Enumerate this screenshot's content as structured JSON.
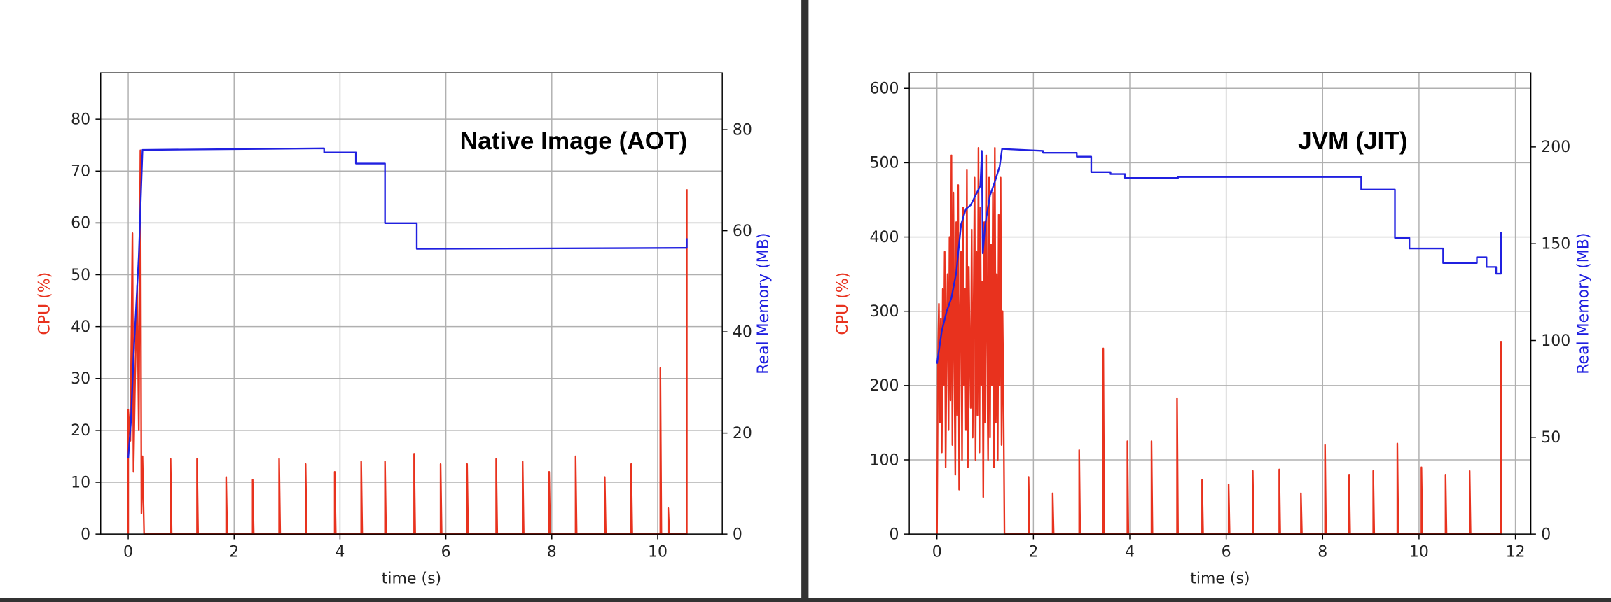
{
  "chart_data": [
    {
      "type": "line",
      "title": "Native Image (AOT)",
      "x_label": "time (s)",
      "y_label": "CPU (%)",
      "y2_label": "Real Memory (MB)",
      "xlim": [
        -0.52,
        11.22
      ],
      "ylim": [
        0,
        88.9
      ],
      "y2lim": [
        0,
        91.2
      ],
      "xticks": [
        0,
        2,
        4,
        6,
        8,
        10
      ],
      "yticks": [
        0,
        10,
        20,
        30,
        40,
        50,
        60,
        70,
        80
      ],
      "y2ticks": [
        0,
        20,
        40,
        60,
        80
      ],
      "grid": true,
      "series": [
        {
          "color": "#e8321e",
          "axis": "y",
          "x": [
            0,
            0,
            0.04,
            0.08,
            0.1,
            0.13,
            0.17,
            0.2,
            0.23,
            0.25,
            0.27,
            0.3,
            0.8,
            0.8,
            0.82,
            1.3,
            1.3,
            1.32,
            1.85,
            1.85,
            1.87,
            2.35,
            2.35,
            2.37,
            2.85,
            2.85,
            2.87,
            3.35,
            3.35,
            3.37,
            3.9,
            3.9,
            3.92,
            4.4,
            4.4,
            4.42,
            4.85,
            4.85,
            4.87,
            5.4,
            5.4,
            5.42,
            5.9,
            5.9,
            5.92,
            6.4,
            6.4,
            6.42,
            6.95,
            6.95,
            6.97,
            7.45,
            7.45,
            7.47,
            7.95,
            7.95,
            7.97,
            8.45,
            8.45,
            8.47,
            9.0,
            9.0,
            9.02,
            9.5,
            9.5,
            9.52,
            10.05,
            10.05,
            10.07,
            10.2,
            10.2,
            10.22,
            10.55,
            10.55
          ],
          "values": [
            0,
            24,
            18,
            58,
            12,
            30,
            48,
            20,
            74,
            4,
            15,
            0,
            0,
            14.5,
            0,
            0,
            14.5,
            0,
            0,
            11,
            0,
            0,
            10.5,
            0,
            0,
            14.5,
            0,
            0,
            13.5,
            0,
            0,
            12,
            0,
            0,
            14,
            0,
            0,
            14,
            0,
            0,
            15.5,
            0,
            0,
            13.5,
            0,
            0,
            13.5,
            0,
            0,
            14.5,
            0,
            0,
            14,
            0,
            0,
            12,
            0,
            0,
            15,
            0,
            0,
            11,
            0,
            0,
            13.5,
            0,
            0,
            32,
            0,
            0,
            5,
            0,
            0,
            66.5
          ]
        },
        {
          "color": "#2020e0",
          "axis": "y2",
          "x": [
            0,
            0.05,
            0.1,
            0.15,
            0.2,
            0.27,
            0.3,
            3.7,
            3.7,
            4.3,
            4.3,
            4.85,
            4.85,
            5.45,
            5.45,
            10.5,
            10.55,
            10.55
          ],
          "values": [
            15,
            22,
            35,
            45,
            55,
            76,
            76,
            76.3,
            75.5,
            75.5,
            73.3,
            73.3,
            61.5,
            61.5,
            56.4,
            56.6,
            56.6,
            58.5
          ]
        }
      ]
    },
    {
      "type": "line",
      "title": "JVM (JIT)",
      "x_label": "time (s)",
      "y_label": "CPU (%)",
      "y2_label": "Real Memory (MB)",
      "xlim": [
        -0.575,
        12.32
      ],
      "ylim": [
        0,
        620.8
      ],
      "y2lim": [
        0,
        238.2
      ],
      "xticks": [
        0,
        2,
        4,
        6,
        8,
        10,
        12
      ],
      "yticks": [
        0,
        100,
        200,
        300,
        400,
        500,
        600
      ],
      "y2ticks": [
        0,
        50,
        100,
        150,
        200
      ],
      "grid": true,
      "series": [
        {
          "color": "#e8321e",
          "axis": "y",
          "x": [
            0,
            0.02,
            0.04,
            0.06,
            0.08,
            0.1,
            0.12,
            0.14,
            0.16,
            0.18,
            0.2,
            0.22,
            0.24,
            0.26,
            0.28,
            0.3,
            0.32,
            0.34,
            0.36,
            0.38,
            0.4,
            0.42,
            0.44,
            0.46,
            0.48,
            0.5,
            0.52,
            0.54,
            0.56,
            0.58,
            0.6,
            0.62,
            0.64,
            0.66,
            0.68,
            0.7,
            0.72,
            0.74,
            0.76,
            0.78,
            0.8,
            0.82,
            0.84,
            0.86,
            0.88,
            0.9,
            0.92,
            0.94,
            0.96,
            0.98,
            1.0,
            1.02,
            1.04,
            1.06,
            1.08,
            1.1,
            1.12,
            1.14,
            1.16,
            1.18,
            1.2,
            1.22,
            1.24,
            1.26,
            1.28,
            1.3,
            1.32,
            1.34,
            1.36,
            1.38,
            1.4,
            1.9,
            1.9,
            1.92,
            2.4,
            2.4,
            2.42,
            2.95,
            2.95,
            2.97,
            3.45,
            3.45,
            3.47,
            3.95,
            3.95,
            3.97,
            4.45,
            4.45,
            4.47,
            4.98,
            4.98,
            5.0,
            5.5,
            5.5,
            5.52,
            6.05,
            6.05,
            6.07,
            6.55,
            6.55,
            6.57,
            7.1,
            7.1,
            7.12,
            7.55,
            7.55,
            7.57,
            8.05,
            8.05,
            8.07,
            8.55,
            8.55,
            8.57,
            9.05,
            9.05,
            9.07,
            9.55,
            9.55,
            9.57,
            10.05,
            10.05,
            10.07,
            10.55,
            10.55,
            10.57,
            11.05,
            11.05,
            11.07,
            11.7,
            11.7
          ],
          "values": [
            0,
            230,
            310,
            150,
            290,
            110,
            330,
            200,
            380,
            90,
            260,
            350,
            140,
            400,
            180,
            510,
            120,
            460,
            240,
            80,
            420,
            160,
            470,
            60,
            300,
            380,
            100,
            440,
            200,
            330,
            140,
            490,
            90,
            360,
            250,
            170,
            410,
            130,
            300,
            480,
            100,
            380,
            160,
            520,
            110,
            440,
            200,
            340,
            50,
            420,
            150,
            510,
            260,
            100,
            480,
            130,
            390,
            200,
            460,
            90,
            520,
            150,
            350,
            100,
            430,
            200,
            480,
            120,
            300,
            180,
            0,
            0,
            77,
            0,
            0,
            55,
            0,
            0,
            113,
            0,
            0,
            250,
            0,
            0,
            125,
            0,
            0,
            125,
            0,
            0,
            183,
            0,
            0,
            73,
            0,
            0,
            67,
            0,
            0,
            85,
            0,
            0,
            87,
            0,
            0,
            55,
            0,
            0,
            120,
            0,
            0,
            80,
            0,
            0,
            85,
            0,
            0,
            122,
            0,
            0,
            90,
            0,
            0,
            80,
            0,
            0,
            85,
            0,
            0,
            260
          ]
        },
        {
          "color": "#2020e0",
          "axis": "y2",
          "x": [
            0,
            0.1,
            0.2,
            0.3,
            0.4,
            0.5,
            0.6,
            0.7,
            0.8,
            0.9,
            0.93,
            0.95,
            1.0,
            1.1,
            1.2,
            1.3,
            1.35,
            2.2,
            2.2,
            2.9,
            2.9,
            3.2,
            3.2,
            3.6,
            3.6,
            3.9,
            3.9,
            5.0,
            5.0,
            8.8,
            8.8,
            9.5,
            9.5,
            9.8,
            9.8,
            10.5,
            10.5,
            11.2,
            11.2,
            11.4,
            11.4,
            11.6,
            11.6,
            11.7,
            11.7
          ],
          "values": [
            88,
            105,
            115,
            122,
            135,
            160,
            168,
            170,
            175,
            180,
            198,
            145,
            160,
            175,
            182,
            190,
            199,
            198,
            197,
            197,
            195,
            195,
            187,
            187,
            186,
            186,
            184,
            184,
            184.5,
            184.5,
            178,
            178,
            153,
            153,
            147.5,
            147.5,
            140,
            140,
            143,
            143,
            138,
            138,
            134.5,
            134.5,
            156
          ]
        }
      ]
    }
  ]
}
